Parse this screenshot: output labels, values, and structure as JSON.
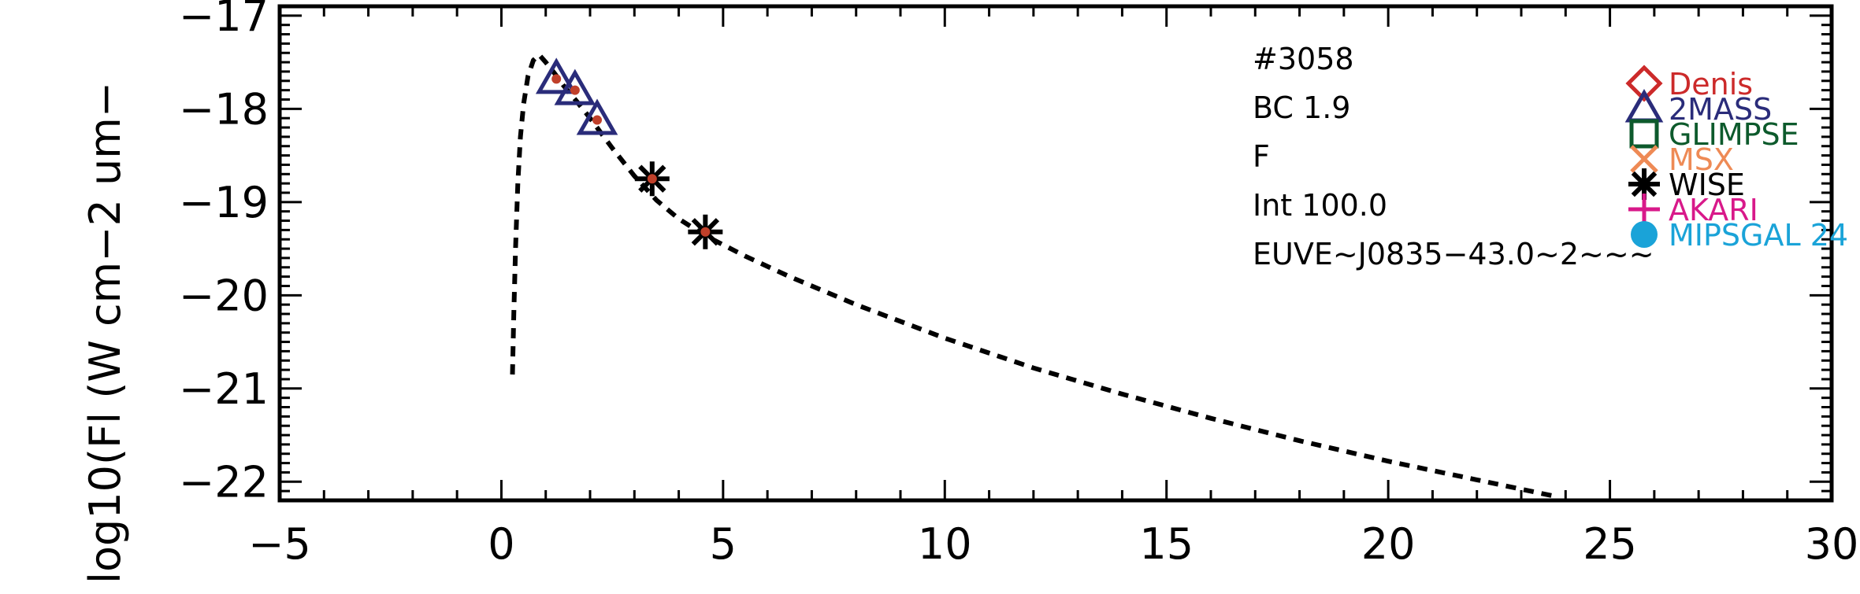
{
  "chart_data": {
    "type": "scatter",
    "title": "",
    "xlabel": "",
    "ylabel": "log10(Fl (W cm−2 um−",
    "xlim": [
      -5,
      30
    ],
    "ylim": [
      -22.2,
      -16.9
    ],
    "x_ticks": [
      -5,
      0,
      5,
      10,
      15,
      20,
      25,
      30
    ],
    "x_tick_labels": [
      "−5",
      "0",
      "5",
      "10",
      "15",
      "20",
      "25",
      "30"
    ],
    "y_ticks": [
      -17,
      -18,
      -19,
      -20,
      -21,
      -22
    ],
    "y_tick_labels": [
      "−17",
      "−18",
      "−19",
      "−20",
      "−21",
      "−22"
    ],
    "grid": false,
    "model_curve": {
      "name": "",
      "style": "dashed",
      "color": "#000000",
      "x": [
        0.25,
        0.28,
        0.32,
        0.37,
        0.43,
        0.5,
        0.6,
        0.72,
        0.85,
        1.0,
        1.2,
        1.4,
        1.7,
        2.0,
        2.5,
        3.0,
        3.5,
        4.0,
        4.6,
        5.5,
        6.5,
        8.0,
        10.0,
        12.0,
        14.0,
        16.0,
        18.0,
        20.0,
        22.0,
        23.7
      ],
      "y": [
        -20.85,
        -20.2,
        -19.5,
        -18.8,
        -18.3,
        -17.95,
        -17.65,
        -17.48,
        -17.42,
        -17.5,
        -17.62,
        -17.75,
        -17.92,
        -18.1,
        -18.42,
        -18.72,
        -18.98,
        -19.18,
        -19.36,
        -19.58,
        -19.8,
        -20.1,
        -20.46,
        -20.78,
        -21.06,
        -21.32,
        -21.56,
        -21.78,
        -21.98,
        -22.15
      ]
    },
    "series": [
      {
        "name": "2MASS",
        "marker": "triangle",
        "color": "#2a2c7a",
        "x": [
          1.24,
          1.66,
          2.16
        ],
        "y": [
          -17.68,
          -17.8,
          -18.12
        ]
      },
      {
        "name": "WISE",
        "marker": "asterisk",
        "color": "#000000",
        "x": [
          3.4,
          4.6
        ],
        "y": [
          -18.75,
          -19.32
        ]
      },
      {
        "name": "",
        "marker": "dot",
        "color": "#c0402a",
        "x": [
          1.24,
          1.66,
          2.16,
          3.4,
          4.6
        ],
        "y": [
          -17.68,
          -17.8,
          -18.12,
          -18.75,
          -19.32
        ]
      }
    ],
    "annotations": [
      "#3058",
      "BC 1.9",
      "F",
      "Int 100.0",
      "EUVE~J0835−43.0~2~~~"
    ],
    "legend": {
      "placement": "top-right",
      "entries": [
        {
          "label": "Denis",
          "marker": "diamond",
          "color": "#cc2a2a"
        },
        {
          "label": "2MASS",
          "marker": "triangle",
          "color": "#2a2c7a"
        },
        {
          "label": "GLIMPSE",
          "marker": "square",
          "color": "#0d5a2c"
        },
        {
          "label": "MSX",
          "marker": "x",
          "color": "#ee8a55"
        },
        {
          "label": "WISE",
          "marker": "asterisk",
          "color": "#000000"
        },
        {
          "label": "AKARI",
          "marker": "plus",
          "color": "#d8198a"
        },
        {
          "label": "MIPSGAL 24",
          "marker": "filled-circle",
          "color": "#1aa3d8"
        }
      ]
    }
  }
}
